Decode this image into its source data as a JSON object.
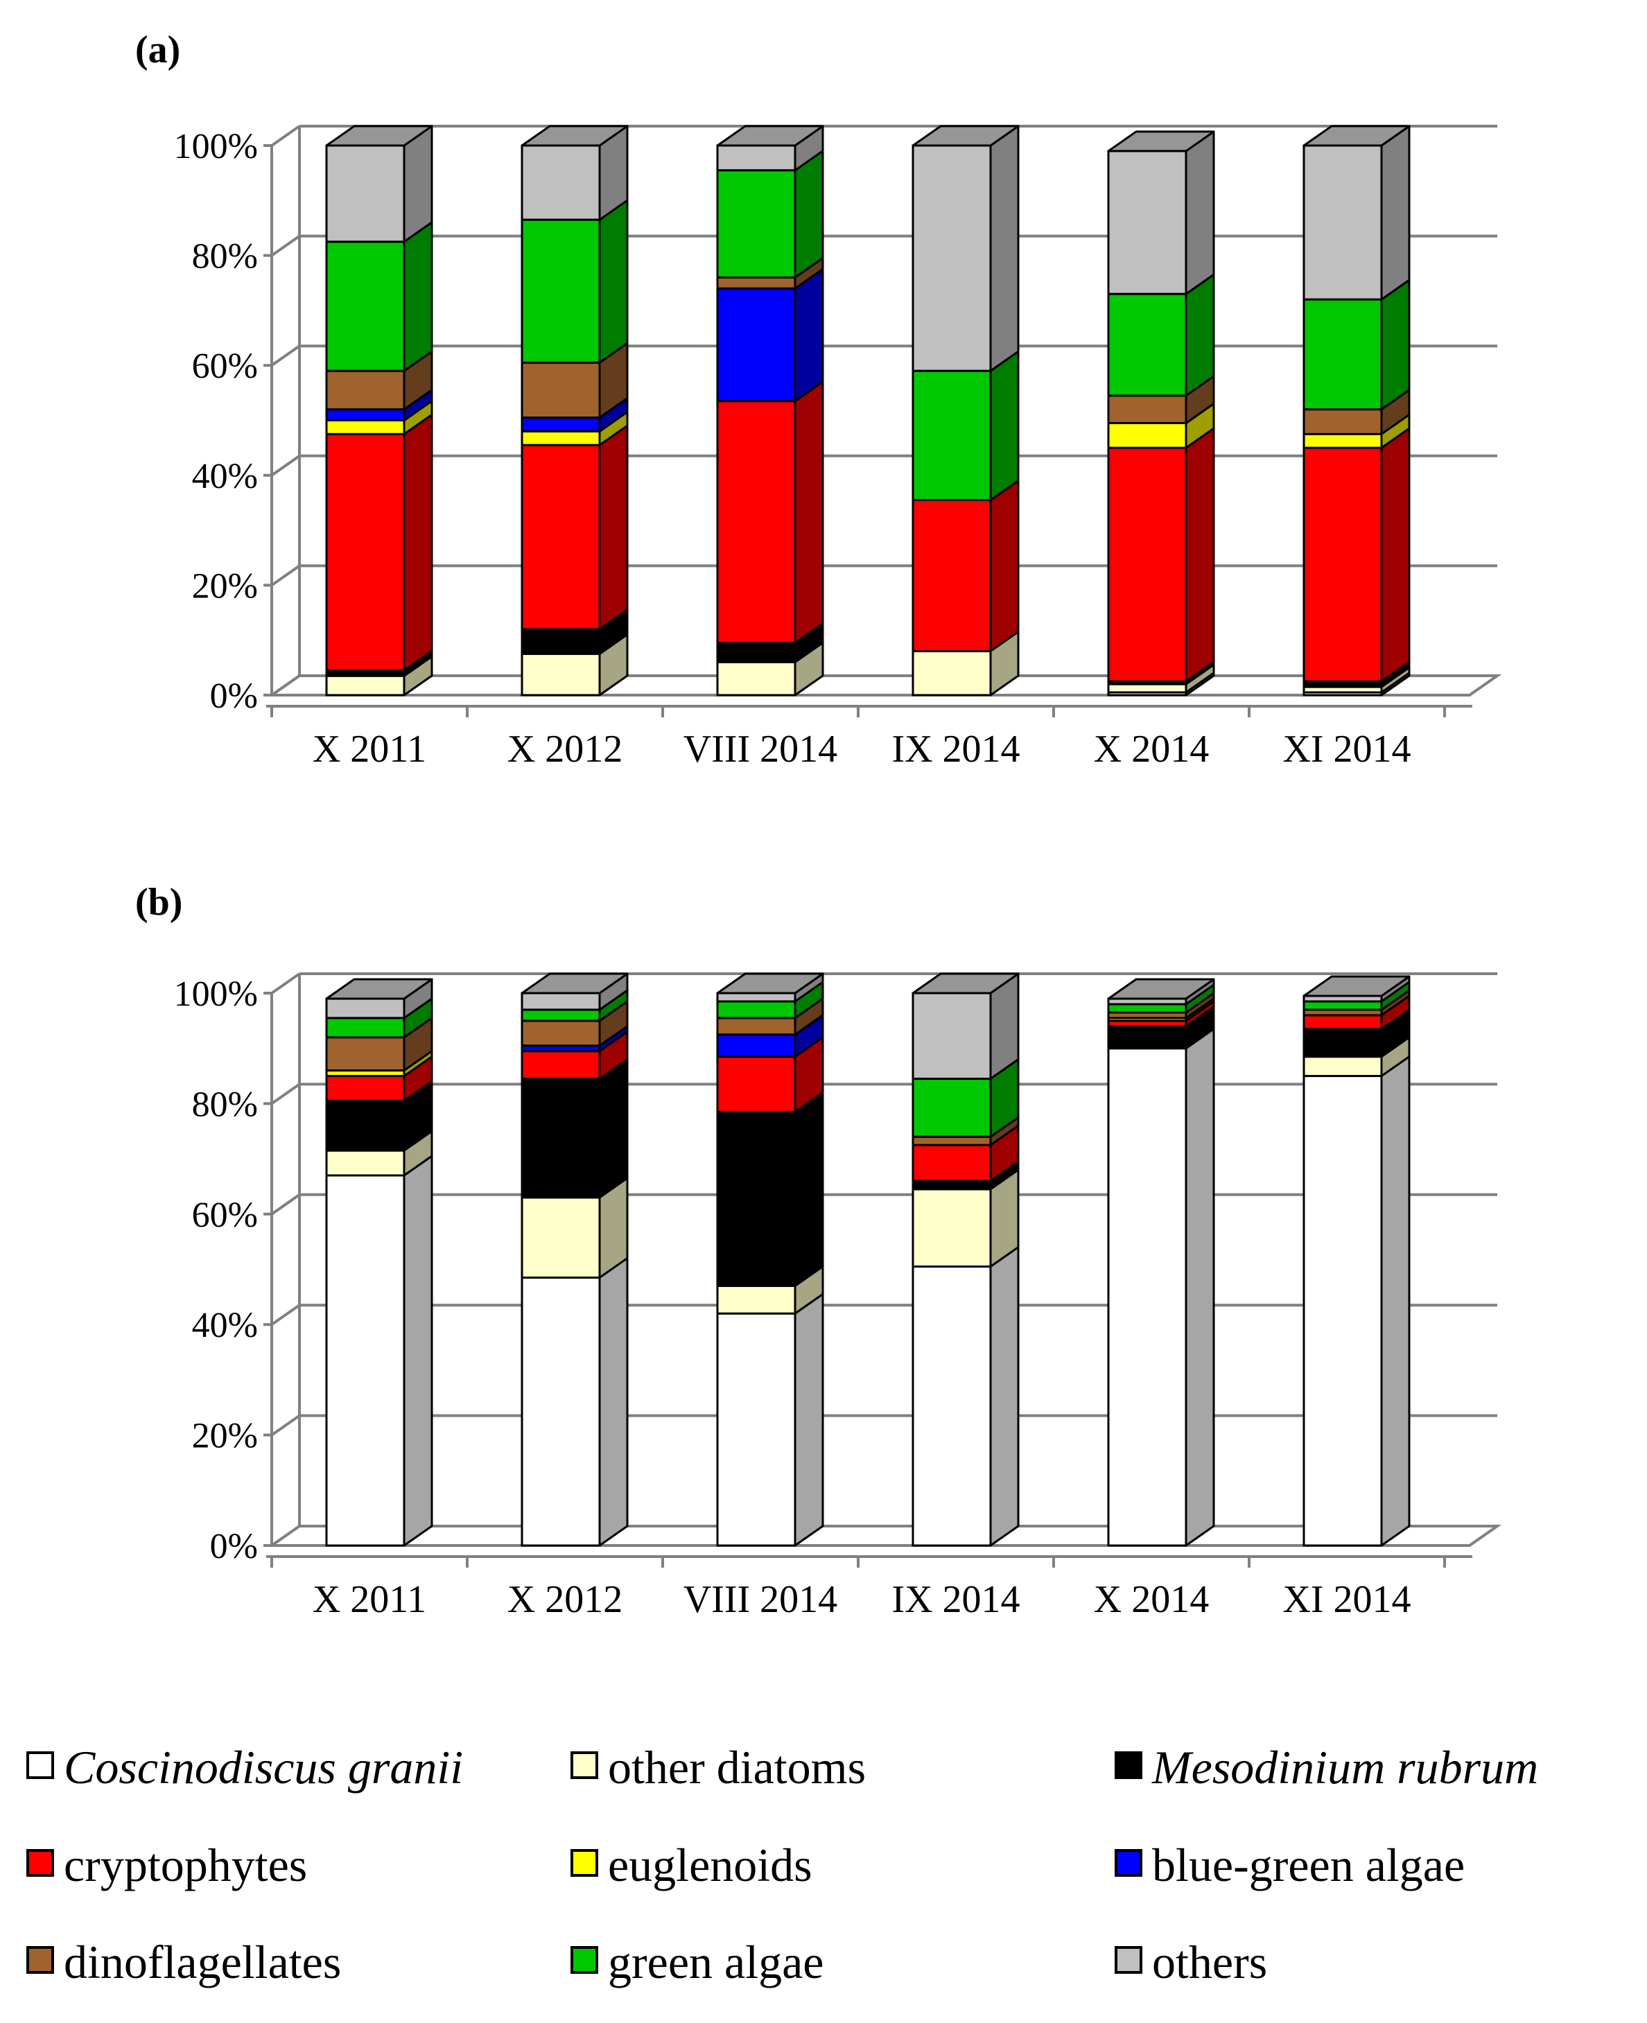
{
  "chart_data": [
    {
      "panel_label": "(a)",
      "type": "bar",
      "stacked": true,
      "percent": true,
      "ylim": [
        0,
        100
      ],
      "yticks": [
        "0%",
        "20%",
        "40%",
        "60%",
        "80%",
        "100%"
      ],
      "categories": [
        "X 2011",
        "X 2012",
        "VIII 2014",
        "IX 2014",
        "X 2014",
        "XI 2014"
      ],
      "series": [
        {
          "name": "Coscinodiscus granii",
          "values": [
            0,
            0,
            0,
            0,
            0.5,
            0.5
          ]
        },
        {
          "name": "other diatoms",
          "values": [
            3.5,
            7.5,
            6,
            8,
            1.5,
            1
          ]
        },
        {
          "name": "Mesodinium rubrum",
          "values": [
            1,
            4.5,
            3.5,
            0,
            0.5,
            1
          ]
        },
        {
          "name": "cryptophytes",
          "values": [
            43,
            33.5,
            44,
            27.5,
            42.5,
            42.5
          ]
        },
        {
          "name": "euglenoids",
          "values": [
            2.5,
            2.5,
            0,
            0,
            4.5,
            2.5
          ]
        },
        {
          "name": "blue-green algae",
          "values": [
            2,
            2.5,
            20.5,
            0,
            0,
            0
          ]
        },
        {
          "name": "dinoflagellates",
          "values": [
            7,
            10,
            2,
            0,
            5,
            4.5
          ]
        },
        {
          "name": "green algae",
          "values": [
            23.5,
            26,
            19.5,
            23.5,
            18.5,
            20
          ]
        },
        {
          "name": "others",
          "values": [
            17.5,
            13.5,
            4.5,
            41,
            26,
            28
          ]
        }
      ]
    },
    {
      "panel_label": "(b)",
      "type": "bar",
      "stacked": true,
      "percent": true,
      "ylim": [
        0,
        100
      ],
      "yticks": [
        "0%",
        "20%",
        "40%",
        "60%",
        "80%",
        "100%"
      ],
      "categories": [
        "X 2011",
        "X 2012",
        "VIII 2014",
        "IX 2014",
        "X 2014",
        "XI 2014"
      ],
      "series": [
        {
          "name": "Coscinodiscus granii",
          "values": [
            67,
            48.5,
            42,
            50.5,
            90,
            85
          ]
        },
        {
          "name": "other diatoms",
          "values": [
            4.5,
            14.5,
            5,
            14,
            0,
            3.5
          ]
        },
        {
          "name": "Mesodinium rubrum",
          "values": [
            9,
            21.5,
            31.5,
            1.5,
            4,
            5
          ]
        },
        {
          "name": "cryptophytes",
          "values": [
            4.5,
            5,
            10,
            6.5,
            1,
            2.5
          ]
        },
        {
          "name": "euglenoids",
          "values": [
            1,
            0,
            0,
            0,
            0.5,
            0
          ]
        },
        {
          "name": "blue-green algae",
          "values": [
            0,
            1,
            4,
            0,
            0,
            0
          ]
        },
        {
          "name": "dinoflagellates",
          "values": [
            6,
            4.5,
            3,
            1.5,
            1,
            1
          ]
        },
        {
          "name": "green algae",
          "values": [
            3.5,
            2,
            3,
            10.5,
            1.5,
            1.5
          ]
        },
        {
          "name": "others",
          "values": [
            3.5,
            3,
            1.5,
            15.5,
            1,
            1
          ]
        }
      ]
    }
  ],
  "colors": {
    "Coscinodiscus granii": "#ffffff",
    "other diatoms": "#ffffcc",
    "Mesodinium rubrum": "#000000",
    "cryptophytes": "#ff0000",
    "euglenoids": "#ffff00",
    "blue-green algae": "#0000ff",
    "dinoflagellates": "#a0632d",
    "green algae": "#00c800",
    "others": "#c0c0c0"
  },
  "legend": {
    "items": [
      {
        "label": "Coscinodiscus granii",
        "italic": true
      },
      {
        "label": "other diatoms",
        "italic": false
      },
      {
        "label": "Mesodinium rubrum",
        "italic": true
      },
      {
        "label": "cryptophytes",
        "italic": false
      },
      {
        "label": "euglenoids",
        "italic": false
      },
      {
        "label": "blue-green algae",
        "italic": false
      },
      {
        "label": "dinoflagellates",
        "italic": false
      },
      {
        "label": "green algae",
        "italic": false
      },
      {
        "label": "others",
        "italic": false
      }
    ]
  }
}
